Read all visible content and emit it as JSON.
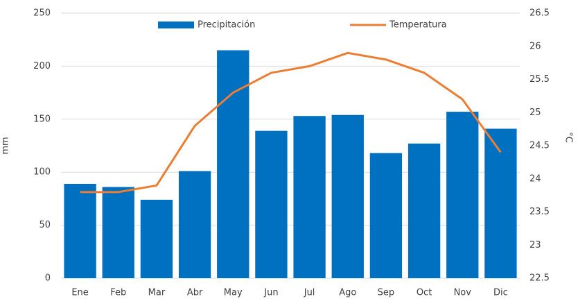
{
  "chart_data": {
    "type": "bar_line",
    "categories": [
      "Ene",
      "Feb",
      "Mar",
      "Abr",
      "May",
      "Jun",
      "Jul",
      "Ago",
      "Sep",
      "Oct",
      "Nov",
      "Dic"
    ],
    "series": [
      {
        "name": "Precipitación",
        "color": "#0070C0",
        "type": "bar",
        "axis": "y",
        "values": [
          89,
          86,
          74,
          101,
          215,
          139,
          153,
          154,
          118,
          127,
          157,
          141
        ]
      },
      {
        "name": "Temperatura",
        "color": "#ED7D31",
        "type": "line",
        "axis": "y2",
        "values": [
          23.8,
          23.8,
          23.9,
          24.8,
          25.3,
          25.6,
          25.7,
          25.9,
          25.8,
          25.6,
          25.2,
          24.4
        ]
      }
    ],
    "ylabel": "mm",
    "y2label": "°C",
    "ylim": [
      0,
      250
    ],
    "yticks": [
      0,
      50,
      100,
      150,
      200,
      250
    ],
    "y2lim": [
      22.5,
      26.5
    ],
    "y2ticks": [
      22.5,
      23,
      23.5,
      24,
      24.5,
      25,
      25.5,
      26,
      26.5
    ],
    "grid": true,
    "legend": "top"
  }
}
